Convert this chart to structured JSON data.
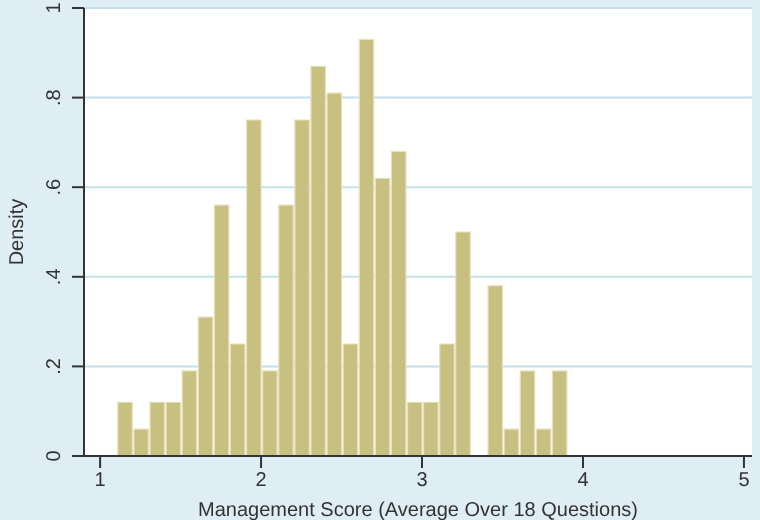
{
  "chart_data": {
    "type": "histogram",
    "xlabel": "Management Score (Average Over 18 Questions)",
    "ylabel": "Density",
    "bins": [
      1.11,
      1.21,
      1.31,
      1.41,
      1.51,
      1.61,
      1.71,
      1.81,
      1.91,
      2.01,
      2.11,
      2.21,
      2.31,
      2.41,
      2.51,
      2.61,
      2.71,
      2.81,
      2.91,
      3.01,
      3.11,
      3.21,
      3.31,
      3.41,
      3.51,
      3.61,
      3.71,
      3.81,
      3.91
    ],
    "values": [
      0.12,
      0.06,
      0.12,
      0.12,
      0.19,
      0.31,
      0.56,
      0.25,
      0.75,
      0.19,
      0.56,
      0.75,
      0.87,
      0.81,
      0.25,
      0.93,
      0.62,
      0.68,
      0.12,
      0.12,
      0.25,
      0.5,
      0,
      0.38,
      0.06,
      0.19,
      0.06,
      0.19
    ],
    "color": "#c8c080",
    "xlim": [
      0.9,
      5.05
    ],
    "xticks": [
      1,
      2,
      3,
      4,
      5
    ],
    "ylim": [
      0,
      1
    ],
    "yticks": [
      0,
      {
        "value": 0.2,
        "label": ".2"
      },
      {
        "value": 0.4,
        "label": ".4"
      },
      {
        "value": 0.6,
        "label": ".6"
      },
      {
        "value": 0.8,
        "label": ".8"
      },
      1
    ],
    "grid": "y"
  }
}
